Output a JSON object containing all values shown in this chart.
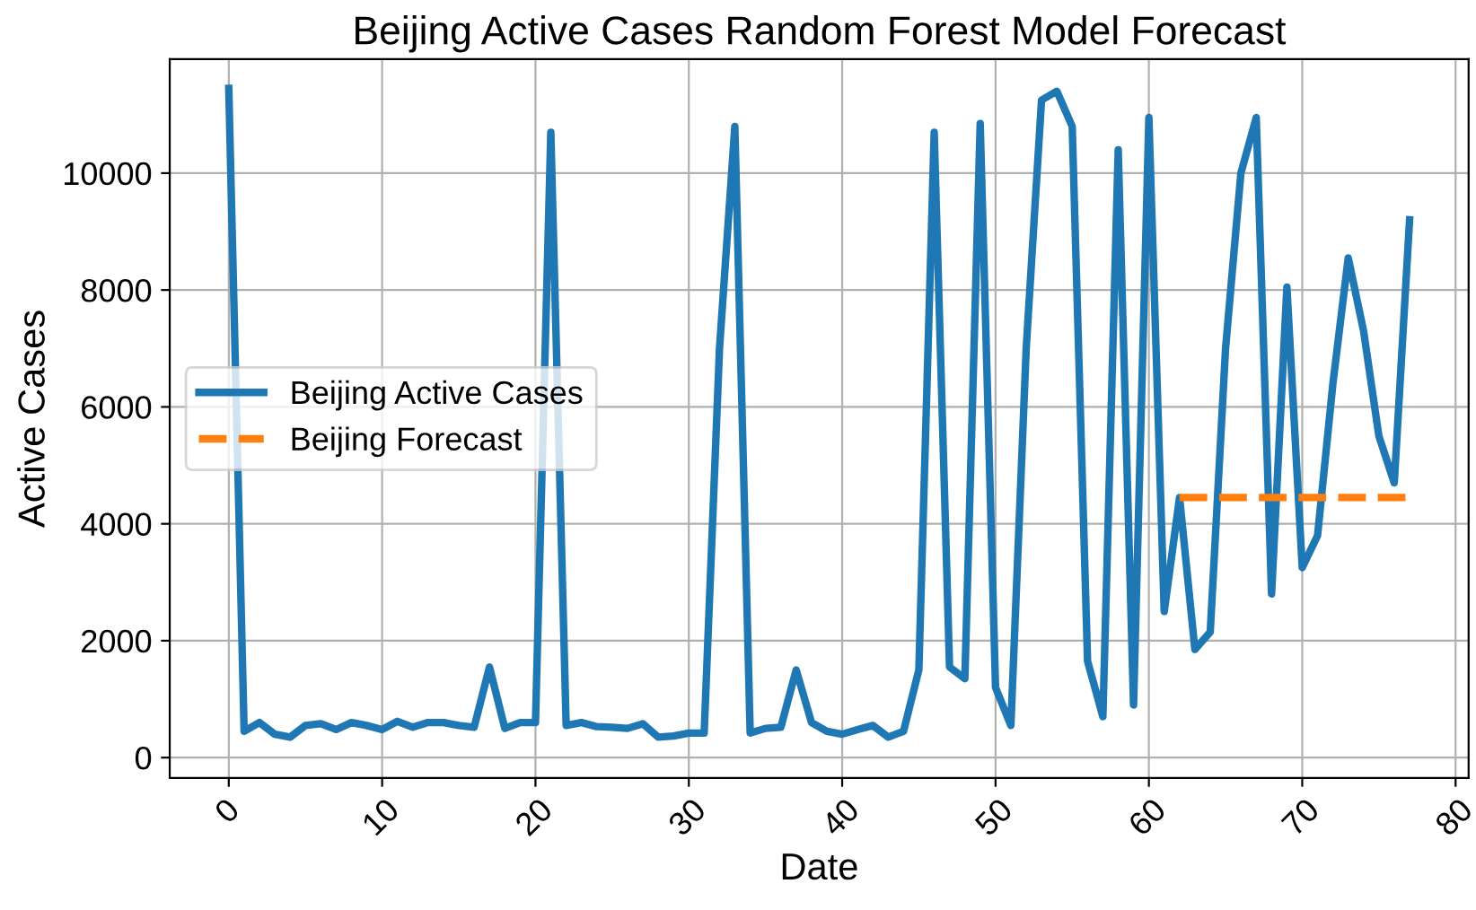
{
  "chart_data": {
    "type": "line",
    "title": "Beijing Active Cases Random Forest Model Forecast",
    "xlabel": "Date",
    "ylabel": "Active Cases",
    "xlim": [
      -3.85,
      80.85
    ],
    "xticks": [
      0,
      10,
      20,
      30,
      40,
      50,
      60,
      70,
      80
    ],
    "ylim": [
      -350,
      11950
    ],
    "yticks": [
      0,
      2000,
      4000,
      6000,
      8000,
      10000
    ],
    "grid": true,
    "legend": "left",
    "series": [
      {
        "name": "Beijing Active Cases",
        "color": "#1f77b4",
        "line_style": "solid",
        "x": [
          0,
          1,
          2,
          3,
          4,
          5,
          6,
          7,
          8,
          9,
          10,
          11,
          12,
          13,
          14,
          15,
          16,
          17,
          18,
          19,
          20,
          21,
          22,
          23,
          24,
          25,
          26,
          27,
          28,
          29,
          30,
          31,
          32,
          33,
          34,
          35,
          36,
          37,
          38,
          39,
          40,
          41,
          42,
          43,
          44,
          45,
          46,
          47,
          48,
          49,
          50,
          51,
          52,
          53,
          54,
          55,
          56,
          57,
          58,
          59,
          60,
          61,
          62,
          63,
          64,
          65,
          66,
          67,
          68,
          69,
          70,
          71,
          72,
          73,
          74,
          75,
          76,
          77
        ],
        "values": [
          11450,
          450,
          600,
          400,
          350,
          550,
          580,
          480,
          600,
          550,
          480,
          620,
          520,
          600,
          600,
          550,
          520,
          1550,
          500,
          600,
          600,
          10700,
          550,
          600,
          530,
          520,
          500,
          580,
          350,
          370,
          420,
          420,
          7000,
          10800,
          420,
          500,
          520,
          1500,
          600,
          450,
          400,
          480,
          550,
          350,
          450,
          1500,
          10700,
          1550,
          1350,
          10850,
          1200,
          550,
          7000,
          11250,
          11400,
          10800,
          1650,
          700,
          10400,
          900,
          10950,
          2500,
          4450,
          1850,
          2150,
          7000,
          10000,
          10950,
          2800,
          8050,
          3250,
          3800,
          6400,
          8550,
          7300,
          5500,
          4700,
          9200
        ]
      },
      {
        "name": "Beijing Forecast",
        "color": "#ff7f0e",
        "line_style": "dashed",
        "x": [
          62,
          63,
          64,
          65,
          66,
          67,
          68,
          69,
          70,
          71,
          72,
          73,
          74,
          75,
          76,
          77
        ],
        "values": [
          4450,
          4450,
          4450,
          4450,
          4450,
          4450,
          4450,
          4450,
          4450,
          4450,
          4450,
          4450,
          4450,
          4450,
          4450,
          4450
        ]
      }
    ]
  }
}
